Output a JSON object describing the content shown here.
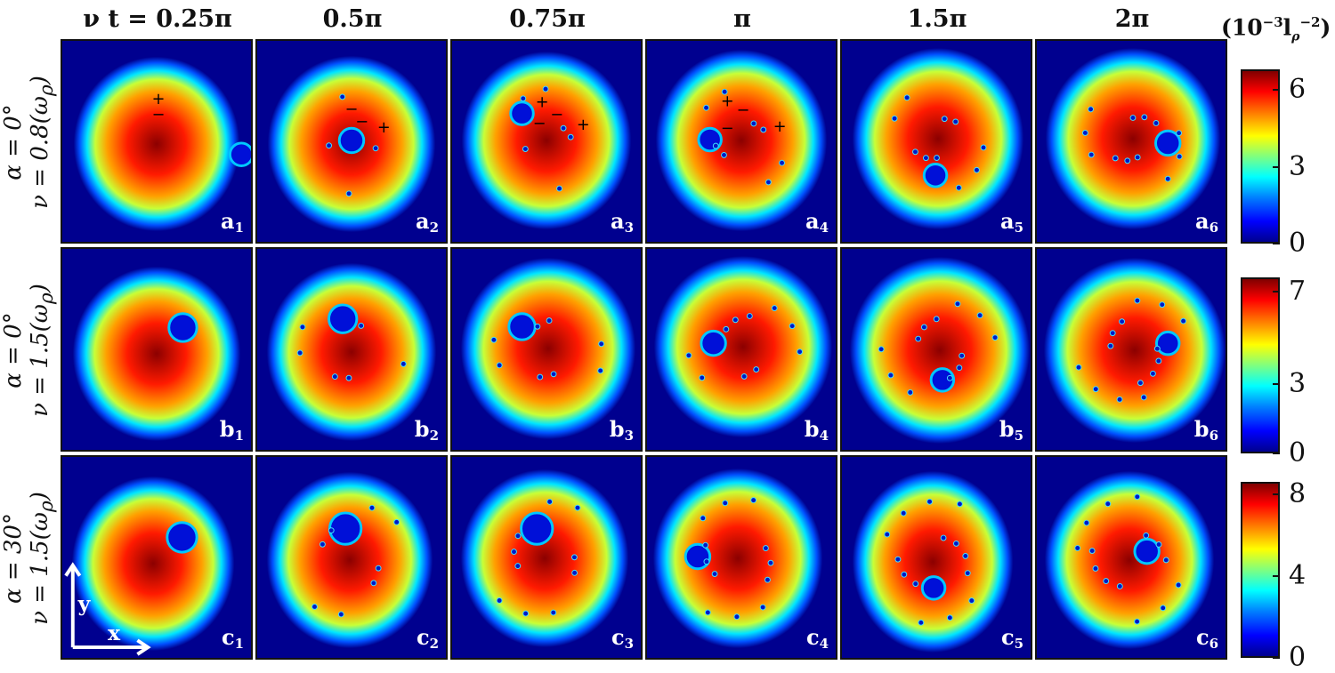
{
  "column_titles": [
    {
      "prefix": "ν t = ",
      "value": "0.25π"
    },
    {
      "prefix": "",
      "value": "0.5π"
    },
    {
      "prefix": "",
      "value": "0.75π"
    },
    {
      "prefix": "",
      "value": "π"
    },
    {
      "prefix": "",
      "value": "1.5π"
    },
    {
      "prefix": "",
      "value": "2π"
    }
  ],
  "rows": [
    {
      "alpha": "α = 0°",
      "nu": "ν = 0.8(ω",
      "nu_sub": "ρ",
      "nu_close": ")",
      "panels": [
        {
          "letter": "a",
          "index": "1"
        },
        {
          "letter": "a",
          "index": "2"
        },
        {
          "letter": "a",
          "index": "3"
        },
        {
          "letter": "a",
          "index": "4"
        },
        {
          "letter": "a",
          "index": "5"
        },
        {
          "letter": "a",
          "index": "6"
        }
      ]
    },
    {
      "alpha": "α = 0°",
      "nu": "ν = 1.5(ω",
      "nu_sub": "ρ",
      "nu_close": ")",
      "panels": [
        {
          "letter": "b",
          "index": "1"
        },
        {
          "letter": "b",
          "index": "2"
        },
        {
          "letter": "b",
          "index": "3"
        },
        {
          "letter": "b",
          "index": "4"
        },
        {
          "letter": "b",
          "index": "5"
        },
        {
          "letter": "b",
          "index": "6"
        }
      ]
    },
    {
      "alpha": "α = 30°",
      "nu": "ν = 1.5(ω",
      "nu_sub": "ρ",
      "nu_close": ")",
      "panels": [
        {
          "letter": "c",
          "index": "1"
        },
        {
          "letter": "c",
          "index": "2"
        },
        {
          "letter": "c",
          "index": "3"
        },
        {
          "letter": "c",
          "index": "4"
        },
        {
          "letter": "c",
          "index": "5"
        },
        {
          "letter": "c",
          "index": "6"
        }
      ]
    }
  ],
  "colorbar": {
    "unit_base": "(10",
    "unit_exp": "−3",
    "unit_l": "l",
    "unit_l_sub": "ρ",
    "unit_l_exp": "−2",
    "unit_close": ")",
    "scales": [
      {
        "ticks": [
          "6",
          "3",
          "0"
        ],
        "max": 6.8
      },
      {
        "ticks": [
          "7",
          "3",
          "0"
        ],
        "max": 7.6
      },
      {
        "ticks": [
          "8",
          "4",
          "0"
        ],
        "max": 8.6
      }
    ]
  },
  "axes_labels": {
    "x": "x",
    "y": "y"
  },
  "vortex_signs": {
    "plus": "+",
    "minus": "−"
  },
  "colors": {
    "background": "#00008f",
    "panel_border": "#111111",
    "label": "#ffffff"
  }
}
